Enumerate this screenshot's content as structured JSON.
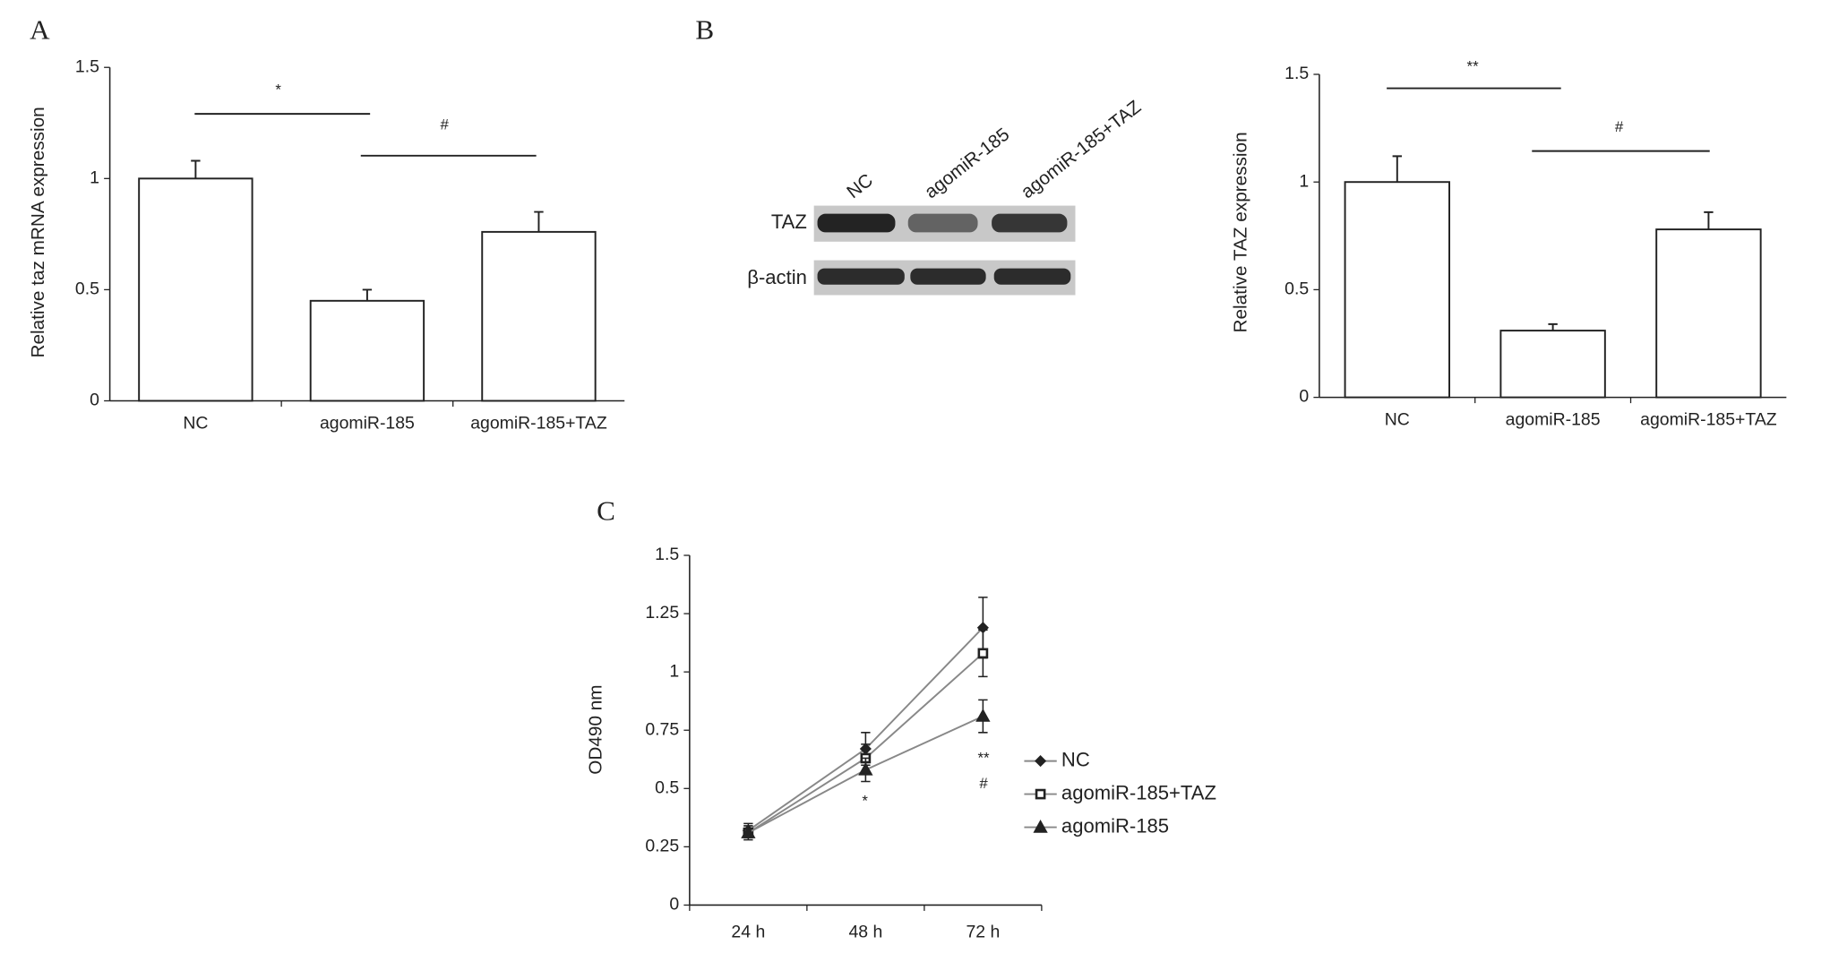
{
  "chart_data": [
    {
      "type": "bar",
      "panel_label": "A",
      "y_label": "Relative taz mRNA expression",
      "categories": [
        "NC",
        "agomiR-185",
        "agomiR-185+TAZ"
      ],
      "values": [
        1.0,
        0.45,
        0.76
      ],
      "errors": [
        0.08,
        0.05,
        0.09
      ],
      "color": "#ffffff",
      "ylim": [
        0,
        1.5
      ],
      "yticks": [
        0,
        0.5,
        1,
        1.5
      ],
      "annotations": [
        "*",
        "#"
      ]
    },
    {
      "type": "bar",
      "panel_label": "B",
      "y_label": "Relative TAZ expression",
      "categories": [
        "NC",
        "agomiR-185",
        "agomiR-185+TAZ"
      ],
      "values": [
        1.0,
        0.31,
        0.78
      ],
      "errors": [
        0.12,
        0.03,
        0.08
      ],
      "color": "#ffffff",
      "ylim": [
        0,
        1.5
      ],
      "yticks": [
        0,
        0.5,
        1,
        1.5
      ],
      "annotations": [
        "**",
        "#"
      ],
      "blot": {
        "lanes": [
          "NC",
          "agomiR-185",
          "agomiR-185+TAZ"
        ],
        "rows": [
          "TAZ",
          "β-actin"
        ]
      }
    },
    {
      "type": "line",
      "panel_label": "C",
      "y_label": "OD490 nm",
      "categories": [
        "24 h",
        "48 h",
        "72 h"
      ],
      "series": [
        {
          "name": "NC",
          "color": "#888888",
          "marker": "diamond",
          "values": [
            0.32,
            0.67,
            1.19
          ],
          "errors": [
            0.03,
            0.07,
            0.13
          ]
        },
        {
          "name": "agomiR-185+TAZ",
          "color": "#888888",
          "marker": "square",
          "values": [
            0.31,
            0.63,
            1.08
          ],
          "errors": [
            0.03,
            0.06,
            0.1
          ]
        },
        {
          "name": "agomiR-185",
          "color": "#888888",
          "marker": "triangle",
          "values": [
            0.31,
            0.58,
            0.81
          ],
          "errors": [
            0.02,
            0.05,
            0.07
          ]
        }
      ],
      "ylim": [
        0,
        1.5
      ],
      "yticks": [
        0,
        0.25,
        0.5,
        0.75,
        1,
        1.25,
        1.5
      ],
      "annotations": [
        "*",
        "**",
        "#"
      ]
    }
  ]
}
